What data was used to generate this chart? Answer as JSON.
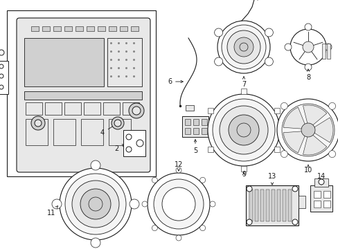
{
  "bg": "#ffffff",
  "lc": "#1a1a1a",
  "lw": 0.7,
  "figsize": [
    4.89,
    3.6
  ],
  "dpi": 100,
  "xlim": [
    0,
    489
  ],
  "ylim": [
    0,
    360
  ]
}
